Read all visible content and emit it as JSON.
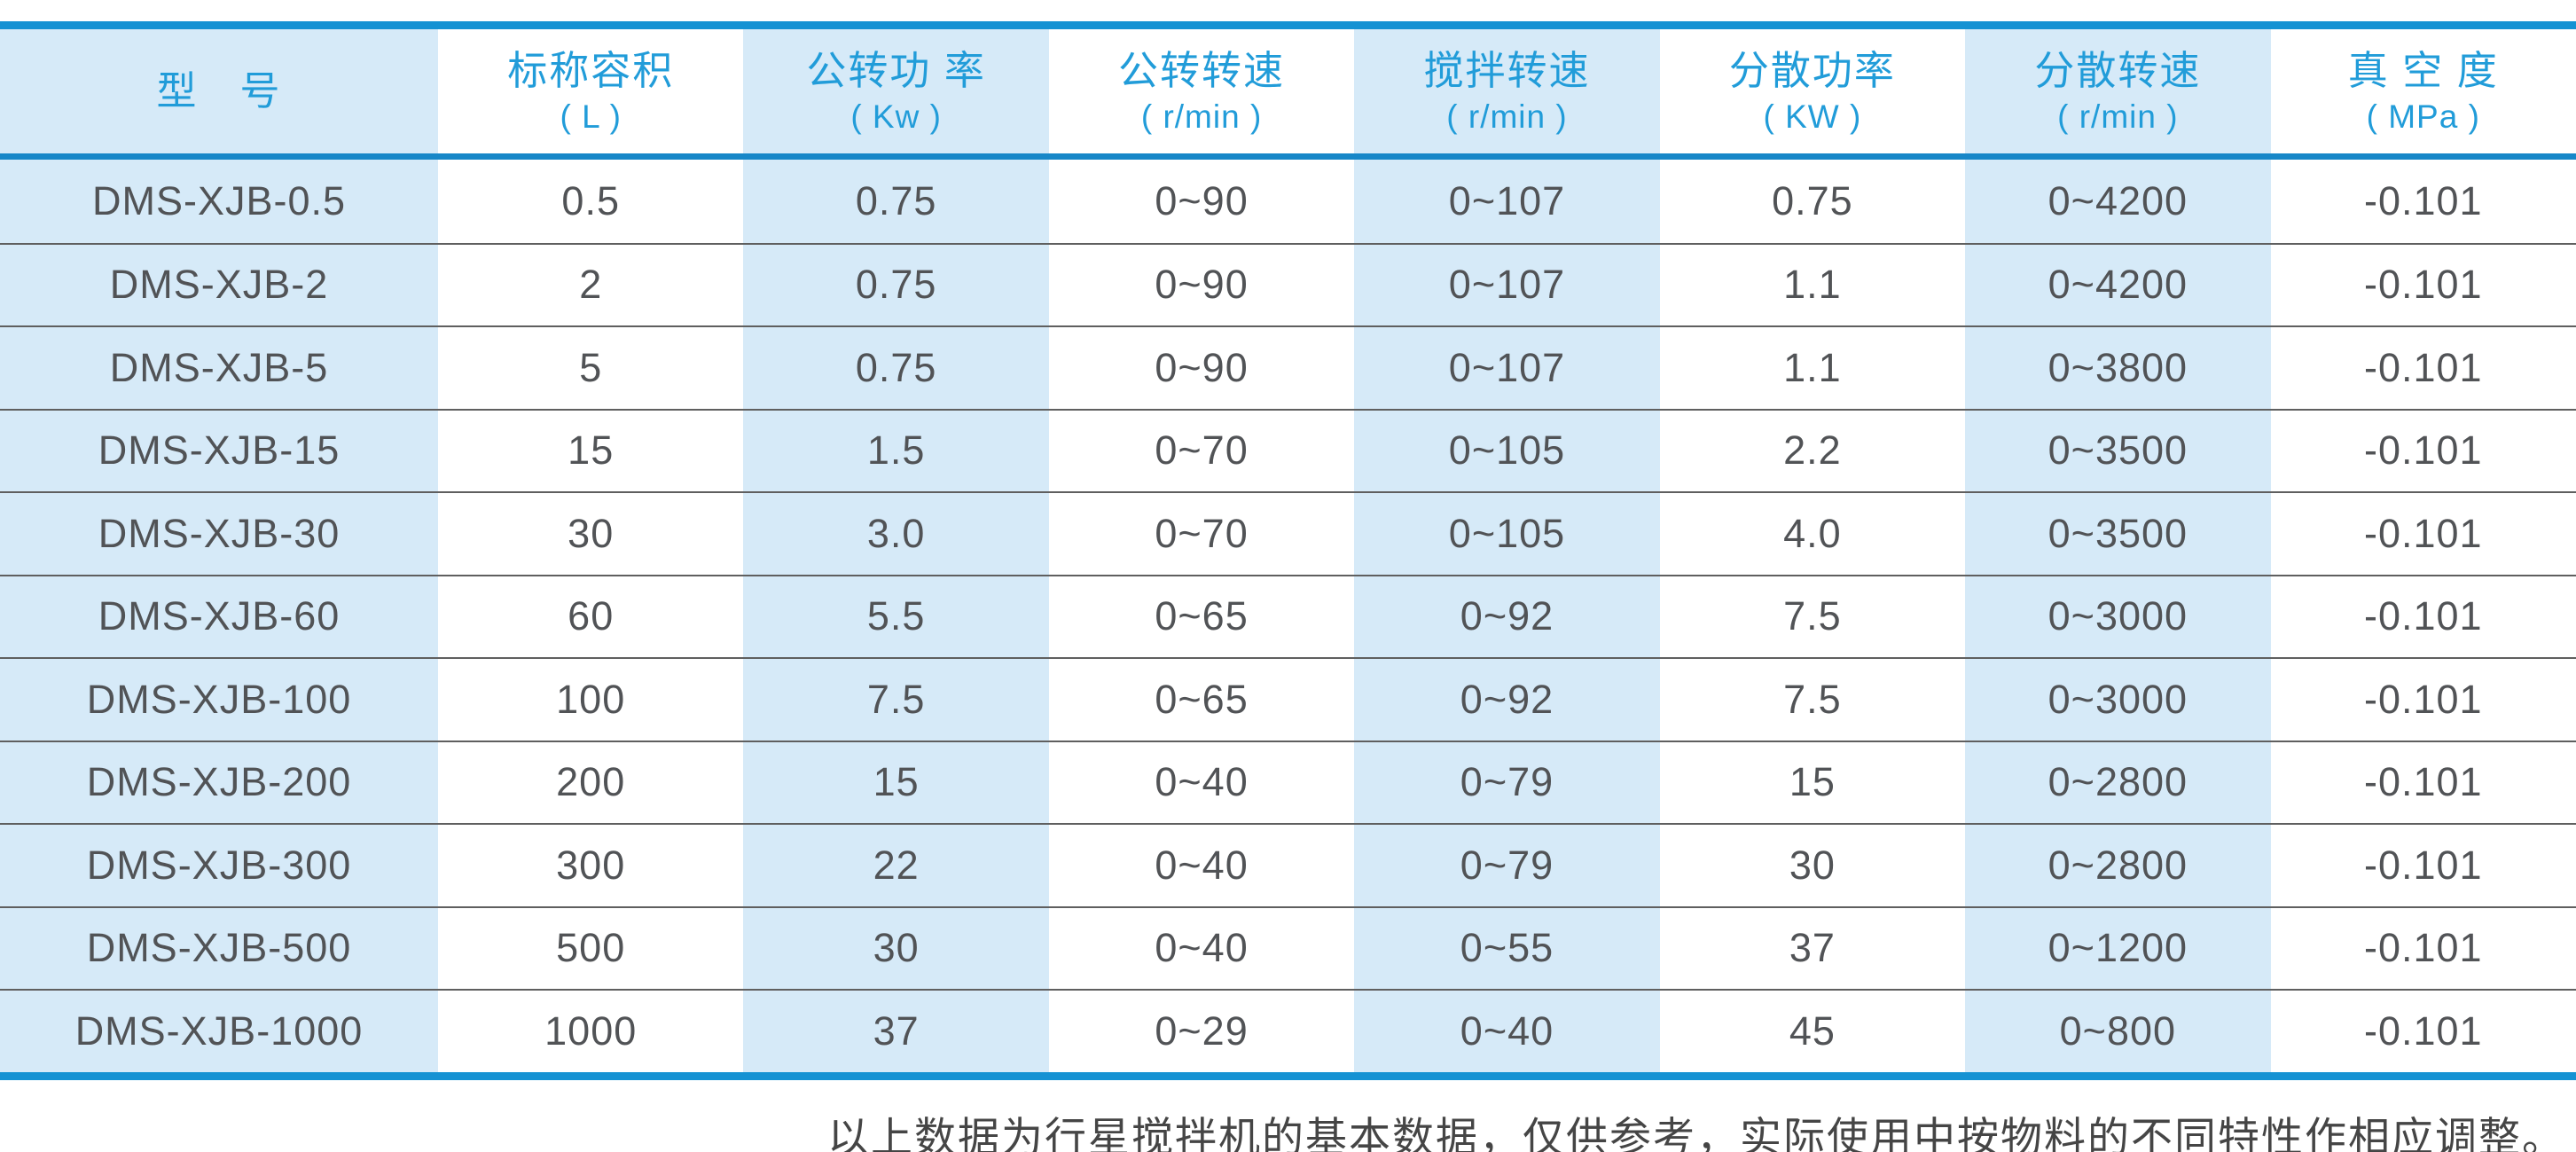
{
  "table": {
    "columns": [
      {
        "label": "型　号",
        "unit": ""
      },
      {
        "label": "标称容积",
        "unit": "( L )"
      },
      {
        "label": "公转功 率",
        "unit": "( Kw )"
      },
      {
        "label": "公转转速",
        "unit": "( r/min )"
      },
      {
        "label": "搅拌转速",
        "unit": "( r/min )"
      },
      {
        "label": "分散功率",
        "unit": "( KW )"
      },
      {
        "label": "分散转速",
        "unit": "( r/min )"
      },
      {
        "label": "真 空 度",
        "unit": "( MPa )"
      }
    ],
    "rows": [
      {
        "model": "DMS-XJB-0.5",
        "values": [
          "0.5",
          "0.75",
          "0~90",
          "0~107",
          "0.75",
          "0~4200",
          "-0.101"
        ]
      },
      {
        "model": "DMS-XJB-2",
        "values": [
          "2",
          "0.75",
          "0~90",
          "0~107",
          "1.1",
          "0~4200",
          "-0.101"
        ]
      },
      {
        "model": "DMS-XJB-5",
        "values": [
          "5",
          "0.75",
          "0~90",
          "0~107",
          "1.1",
          "0~3800",
          "-0.101"
        ]
      },
      {
        "model": "DMS-XJB-15",
        "values": [
          "15",
          "1.5",
          "0~70",
          "0~105",
          "2.2",
          "0~3500",
          "-0.101"
        ]
      },
      {
        "model": "DMS-XJB-30",
        "values": [
          "30",
          "3.0",
          "0~70",
          "0~105",
          "4.0",
          "0~3500",
          "-0.101"
        ]
      },
      {
        "model": "DMS-XJB-60",
        "values": [
          "60",
          "5.5",
          "0~65",
          "0~92",
          "7.5",
          "0~3000",
          "-0.101"
        ]
      },
      {
        "model": "DMS-XJB-100",
        "values": [
          "100",
          "7.5",
          "0~65",
          "0~92",
          "7.5",
          "0~3000",
          "-0.101"
        ]
      },
      {
        "model": "DMS-XJB-200",
        "values": [
          "200",
          "15",
          "0~40",
          "0~79",
          "15",
          "0~2800",
          "-0.101"
        ]
      },
      {
        "model": "DMS-XJB-300",
        "values": [
          "300",
          "22",
          "0~40",
          "0~79",
          "30",
          "0~2800",
          "-0.101"
        ]
      },
      {
        "model": "DMS-XJB-500",
        "values": [
          "500",
          "30",
          "0~40",
          "0~55",
          "37",
          "0~1200",
          "-0.101"
        ]
      },
      {
        "model": "DMS-XJB-1000",
        "values": [
          "1000",
          "37",
          "0~29",
          "0~40",
          "45",
          "0~800",
          "-0.101"
        ]
      }
    ]
  },
  "footer": {
    "note": "以上数据为行星搅拌机的基本数据，仅供参考，实际使用中按物料的不同特性作相应调整。"
  },
  "colors": {
    "border_blue": "#1592d3",
    "header_separator_blue": "#1787c8",
    "header_text_blue": "#219cd9",
    "column_band_blue": "#d6eaf8",
    "body_text": "#515356",
    "row_separator": "#5f5f5f"
  }
}
